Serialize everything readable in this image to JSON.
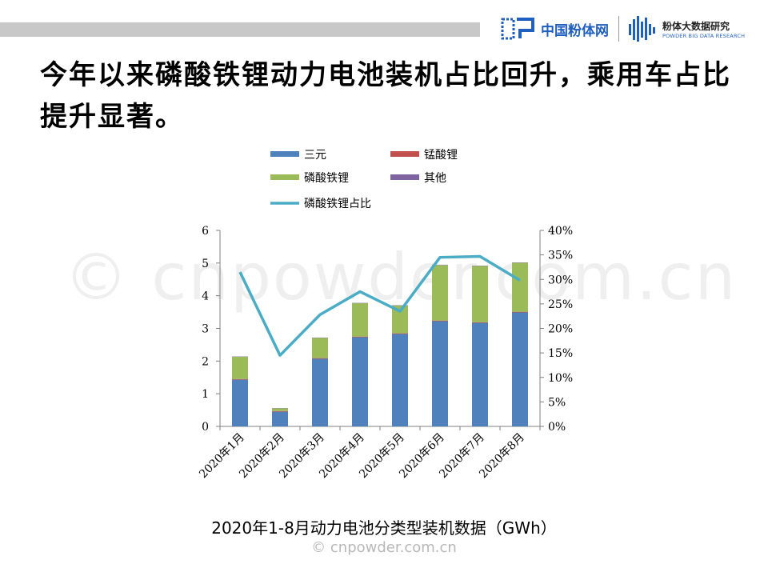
{
  "header": {
    "brand1": "中国粉体网",
    "brand2_cn": "粉体大数据研究",
    "brand2_en": "POWDER BIG DATA RESEARCH"
  },
  "headline": "今年以来磷酸铁锂动力电池装机占比回升，乘用车占比提升显著。",
  "watermark": "© cnpowder.com.cn",
  "footer_watermark": "© cnpowder.com.cn",
  "caption": "2020年1-8月动力电池分类型装机数据（GWh）",
  "colors": {
    "ncm": "#4f81bd",
    "lmo": "#c0504d",
    "lfp": "#9bbb59",
    "other": "#8064a2",
    "lfp_share_line": "#4bacc6"
  },
  "chart_data": {
    "type": "bar",
    "stacked": true,
    "categories": [
      "2020年1月",
      "2020年2月",
      "2020年3月",
      "2020年4月",
      "2020年5月",
      "2020年6月",
      "2020年7月",
      "2020年8月"
    ],
    "series": [
      {
        "name": "三元",
        "axis": "left",
        "values": [
          1.43,
          0.45,
          2.07,
          2.73,
          2.83,
          3.22,
          3.17,
          3.49
        ]
      },
      {
        "name": "锰酸锂",
        "axis": "left",
        "values": [
          0.02,
          0.02,
          0.02,
          0.02,
          0.02,
          0.02,
          0.02,
          0.02
        ]
      },
      {
        "name": "磷酸铁锂",
        "axis": "left",
        "values": [
          0.68,
          0.08,
          0.62,
          1.02,
          0.85,
          1.7,
          1.72,
          1.5
        ]
      },
      {
        "name": "其他",
        "axis": "left",
        "values": [
          0.01,
          0.01,
          0.01,
          0.01,
          0.01,
          0.01,
          0.01,
          0.01
        ]
      }
    ],
    "line_series": {
      "name": "磷酸铁锂占比",
      "axis": "right",
      "values": [
        31.5,
        14.5,
        22.8,
        27.5,
        23.5,
        34.5,
        34.7,
        29.8
      ]
    },
    "ylim": [
      0,
      6
    ],
    "yticks": [
      "0",
      "1",
      "2",
      "3",
      "4",
      "5",
      "6"
    ],
    "y2lim": [
      0,
      40
    ],
    "y2ticks": [
      "0%",
      "5%",
      "10%",
      "15%",
      "20%",
      "25%",
      "30%",
      "35%",
      "40%"
    ],
    "legend_position": "top",
    "grid": false
  }
}
